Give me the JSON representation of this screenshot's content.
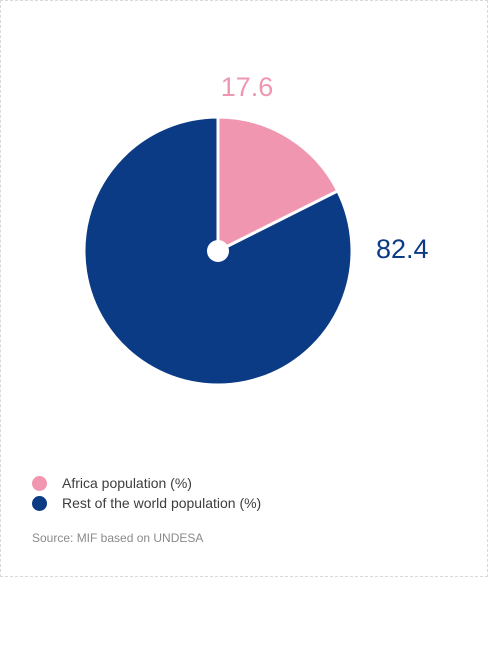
{
  "chart_data": {
    "type": "pie",
    "categories": [
      "Africa population (%)",
      "Rest of the world population (%)"
    ],
    "values": [
      17.6,
      82.4
    ],
    "value_labels": [
      "17.6",
      "82.4"
    ],
    "colors": [
      "#f096b0",
      "#0c3b86"
    ],
    "start": "top, clockwise",
    "center_hole": true,
    "legend_position": "bottom-left"
  },
  "legend": {
    "items": [
      {
        "label": "Africa population (%)",
        "color": "#f096b0"
      },
      {
        "label": "Rest of the world population (%)",
        "color": "#0c3b86"
      }
    ]
  },
  "source": "Source: MIF based on UNDESA"
}
